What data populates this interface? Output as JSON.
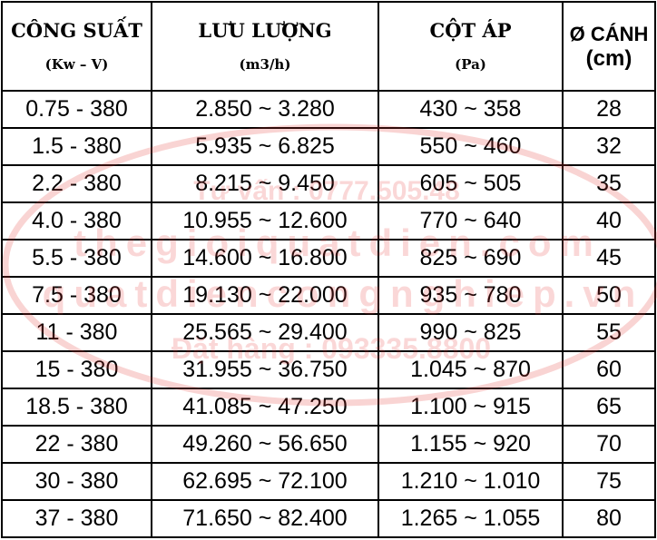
{
  "headers": [
    {
      "title": "CÔNG SUẤT",
      "unit": "(Kw – V)"
    },
    {
      "title": "LƯU LƯỢNG",
      "unit": "(m3/h)"
    },
    {
      "title": "CỘT ÁP",
      "unit": "(Pa)"
    },
    {
      "title": "Ø CÁNH",
      "unit": "(cm)"
    }
  ],
  "rows": [
    [
      "0.75 - 380",
      "2.850 ~ 3.280",
      "430 ~ 358",
      "28"
    ],
    [
      "1.5 - 380",
      "5.935 ~ 6.825",
      "550 ~ 460",
      "32"
    ],
    [
      "2.2 - 380",
      "8.215 ~ 9.450",
      "605 ~ 505",
      "35"
    ],
    [
      "4.0 - 380",
      "10.955 ~ 12.600",
      "770 ~ 640",
      "40"
    ],
    [
      "5.5 - 380",
      "14.600 ~ 16.800",
      "825 ~ 690",
      "45"
    ],
    [
      "7.5 - 380",
      "19.130 ~ 22.000",
      "935 ~ 780",
      "50"
    ],
    [
      "11 - 380",
      "25.565 ~ 29.400",
      "990 ~ 825",
      "55"
    ],
    [
      "15 - 380",
      "31.955 ~ 36.750",
      "1.045 ~ 870",
      "60"
    ],
    [
      "18.5 - 380",
      "41.085 ~ 47.250",
      "1.100 ~ 915",
      "65"
    ],
    [
      "22 - 380",
      "49.260 ~ 56.650",
      "1.155 ~ 920",
      "70"
    ],
    [
      "30 - 380",
      "62.695 ~ 72.100",
      "1.210 ~ 1.010",
      "75"
    ],
    [
      "37 - 380",
      "71.650 ~ 82.400",
      "1.265 ~ 1.055",
      "80"
    ]
  ],
  "watermark": {
    "line1": "Tư vấn : 0777.505.48",
    "line2": "thegioiquatdien.com",
    "line3": "quatdiencongnghiep.vn",
    "line4": "Đặt hàng : 093335.8800",
    "color": "#e53935"
  }
}
